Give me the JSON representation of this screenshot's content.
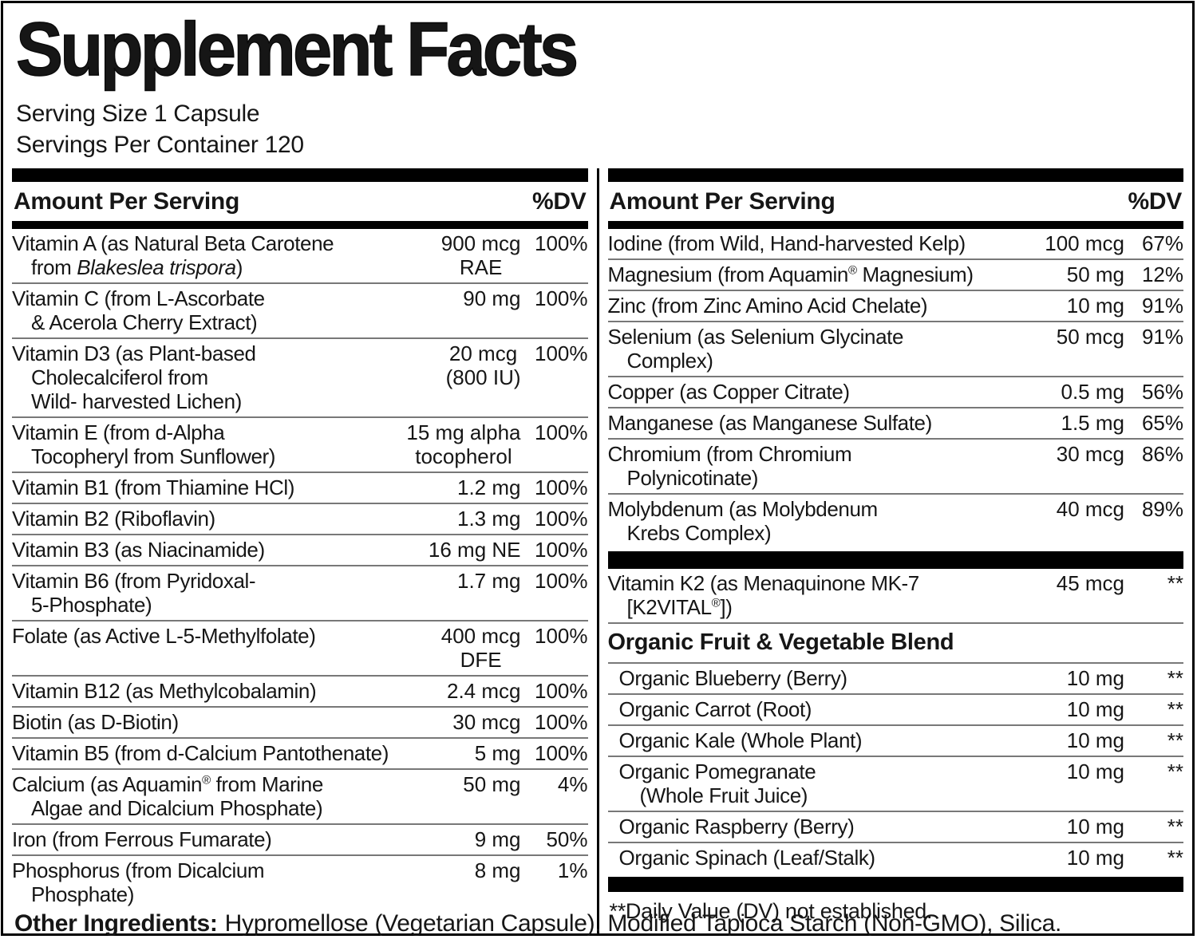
{
  "colors": {
    "bar": "#000000",
    "rule": "#787878",
    "text": "#161616",
    "background": "#ffffff"
  },
  "title": "Supplement Facts",
  "serving_size": "Serving Size 1 Capsule",
  "servings_per_container": "Servings Per Container 120",
  "column_header": {
    "amount": "Amount Per Serving",
    "dv": "%DV"
  },
  "left_column": {
    "rows": [
      {
        "name": "Vitamin A (as Natural Beta Carotene\nfrom <i>Blakeslea trispora</i>)",
        "amount": "900 mcg\nRAE",
        "dv": "100%"
      },
      {
        "name": "Vitamin C (from L-Ascorbate\n& Acerola Cherry Extract)",
        "amount": "90 mg",
        "dv": "100%"
      },
      {
        "name": "Vitamin D3 (as Plant-based\nCholecalciferol from\nWild- harvested Lichen)",
        "amount": "20 mcg\n(800 IU)",
        "dv": "100%"
      },
      {
        "name": "Vitamin E (from d-Alpha\nTocopheryl from Sunflower)",
        "amount": "15 mg alpha\ntocopherol",
        "dv": "100%"
      },
      {
        "name": "Vitamin B1 (from Thiamine HCl)",
        "amount": "1.2 mg",
        "dv": "100%"
      },
      {
        "name": "Vitamin B2 (Riboflavin)",
        "amount": "1.3 mg",
        "dv": "100%"
      },
      {
        "name": "Vitamin B3 (as Niacinamide)",
        "amount": "16 mg NE",
        "dv": "100%"
      },
      {
        "name": "Vitamin B6 (from Pyridoxal-\n5-Phosphate)",
        "amount": "1.7 mg",
        "dv": "100%"
      },
      {
        "name": "Folate (as Active L-5-Methylfolate)",
        "amount": "400 mcg\nDFE",
        "dv": "100%"
      },
      {
        "name": "Vitamin B12 (as Methylcobalamin)",
        "amount": "2.4 mcg",
        "dv": "100%"
      },
      {
        "name": "Biotin (as D-Biotin)",
        "amount": "30 mcg",
        "dv": "100%"
      },
      {
        "name": "Vitamin B5 (from d-Calcium Pantothenate)",
        "amount": "5 mg",
        "dv": "100%"
      },
      {
        "name": "Calcium (as Aquamin<sup>®</sup> from Marine\nAlgae and Dicalcium Phosphate)",
        "amount": "50 mg",
        "dv": "4%"
      },
      {
        "name": "Iron (from Ferrous Fumarate)",
        "amount": "9 mg",
        "dv": "50%"
      },
      {
        "name": "Phosphorus (from Dicalcium\nPhosphate)",
        "amount": "8 mg",
        "dv": "1%"
      }
    ]
  },
  "right_column": {
    "mineral_rows": [
      {
        "name": "Iodine (from Wild, Hand-harvested Kelp)",
        "amount": "100 mcg",
        "dv": "67%"
      },
      {
        "name": "Magnesium (from Aquamin<sup>®</sup> Magnesium)",
        "amount": "50 mg",
        "dv": "12%"
      },
      {
        "name": "Zinc (from Zinc Amino Acid Chelate)",
        "amount": "10 mg",
        "dv": "91%"
      },
      {
        "name": "Selenium (as Selenium Glycinate\nComplex)",
        "amount": "50 mcg",
        "dv": "91%"
      },
      {
        "name": "Copper (as Copper Citrate)",
        "amount": "0.5 mg",
        "dv": "56%"
      },
      {
        "name": "Manganese (as Manganese Sulfate)",
        "amount": "1.5 mg",
        "dv": "65%"
      },
      {
        "name": "Chromium (from Chromium\nPolynicotinate)",
        "amount": "30 mcg",
        "dv": "86%"
      },
      {
        "name": "Molybdenum (as Molybdenum\nKrebs Complex)",
        "amount": "40 mcg",
        "dv": "89%"
      }
    ],
    "k2_rows": [
      {
        "name": "Vitamin K2 (as Menaquinone MK-7\n[K2VITAL<sup>®</sup>])",
        "amount": "45 mcg",
        "dv": "**"
      }
    ],
    "blend_header": "Organic Fruit & Vegetable Blend",
    "blend_rows": [
      {
        "name": "Organic Blueberry (Berry)",
        "amount": "10 mg",
        "dv": "**"
      },
      {
        "name": "Organic Carrot (Root)",
        "amount": "10 mg",
        "dv": "**"
      },
      {
        "name": "Organic Kale (Whole Plant)",
        "amount": "10 mg",
        "dv": "**"
      },
      {
        "name": "Organic Pomegranate\n(Whole Fruit Juice)",
        "amount": "10 mg",
        "dv": "**"
      },
      {
        "name": "Organic Raspberry (Berry)",
        "amount": "10 mg",
        "dv": "**"
      },
      {
        "name": "Organic Spinach (Leaf/Stalk)",
        "amount": "10 mg",
        "dv": "**"
      }
    ],
    "footnote": "**Daily Value (DV) not established."
  },
  "other_ingredients": {
    "label": "Other Ingredients:",
    "text": "Hypromellose (Vegetarian Capsule), Modified Tapioca Starch (Non-GMO), Silica."
  }
}
